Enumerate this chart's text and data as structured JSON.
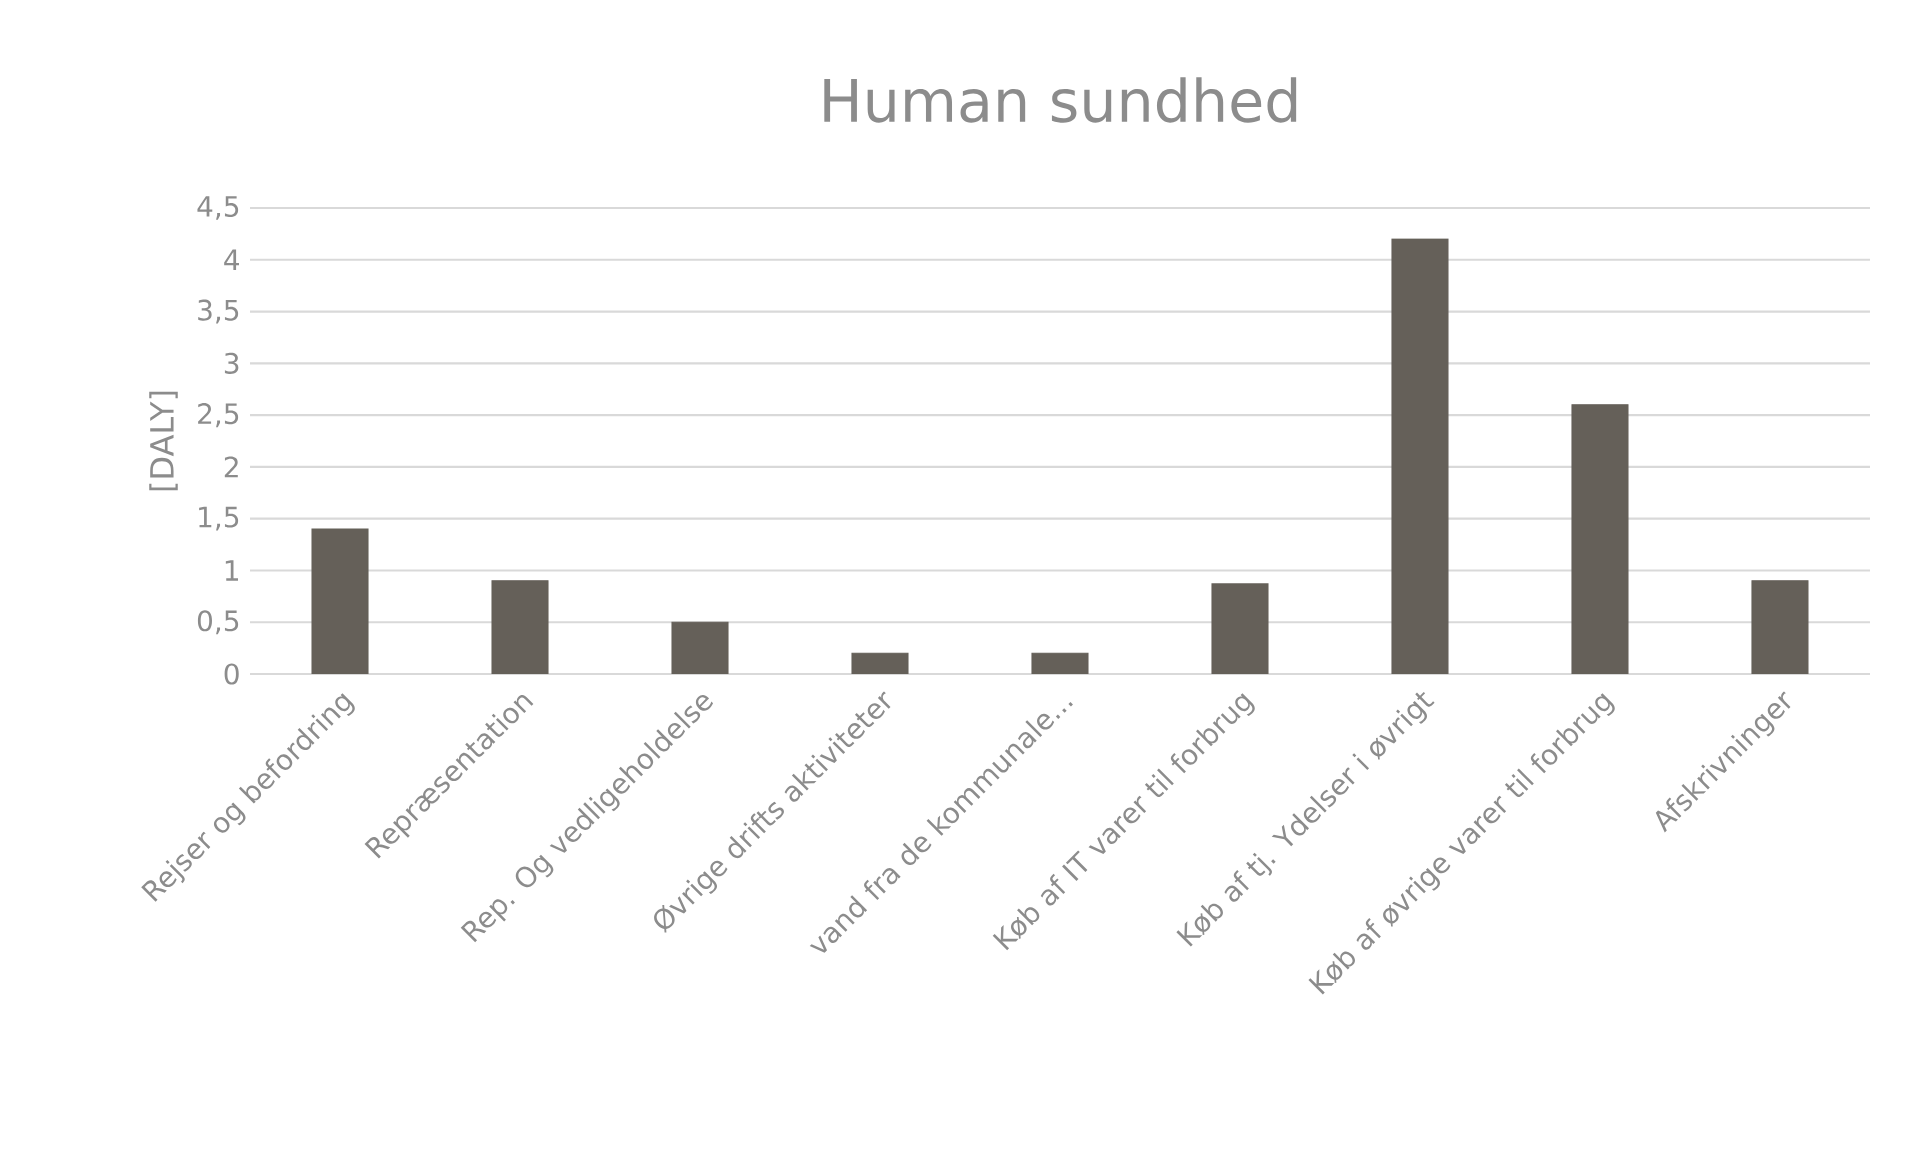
{
  "chart_data": {
    "type": "bar",
    "title": "Human sundhed",
    "ylabel": "[DALY]",
    "categories": [
      "Rejser og befordring",
      "Repræsentation",
      "Rep. Og vedligeholdelse",
      "Øvrige drifts aktiviteter",
      "vand fra de kommunale...",
      "Køb af IT varer til forbrug",
      "Køb af tj. Ydelser i øvrigt",
      "Køb af øvrige varer til forbrug",
      "Afskrivninger"
    ],
    "values": [
      1.4,
      0.9,
      0.5,
      0.2,
      0.2,
      0.87,
      4.2,
      2.6,
      0.9
    ],
    "color": "#656059",
    "ylim": [
      0,
      4.5
    ],
    "yticks": [
      0,
      {
        "value": 0.5,
        "label": "0,5"
      },
      1,
      {
        "value": 1.5,
        "label": "1,5"
      },
      2,
      {
        "value": 2.5,
        "label": "2,5"
      },
      3,
      {
        "value": 3.5,
        "label": "3,5"
      },
      4,
      {
        "value": 4.5,
        "label": "4,5"
      }
    ],
    "grid": "y"
  }
}
